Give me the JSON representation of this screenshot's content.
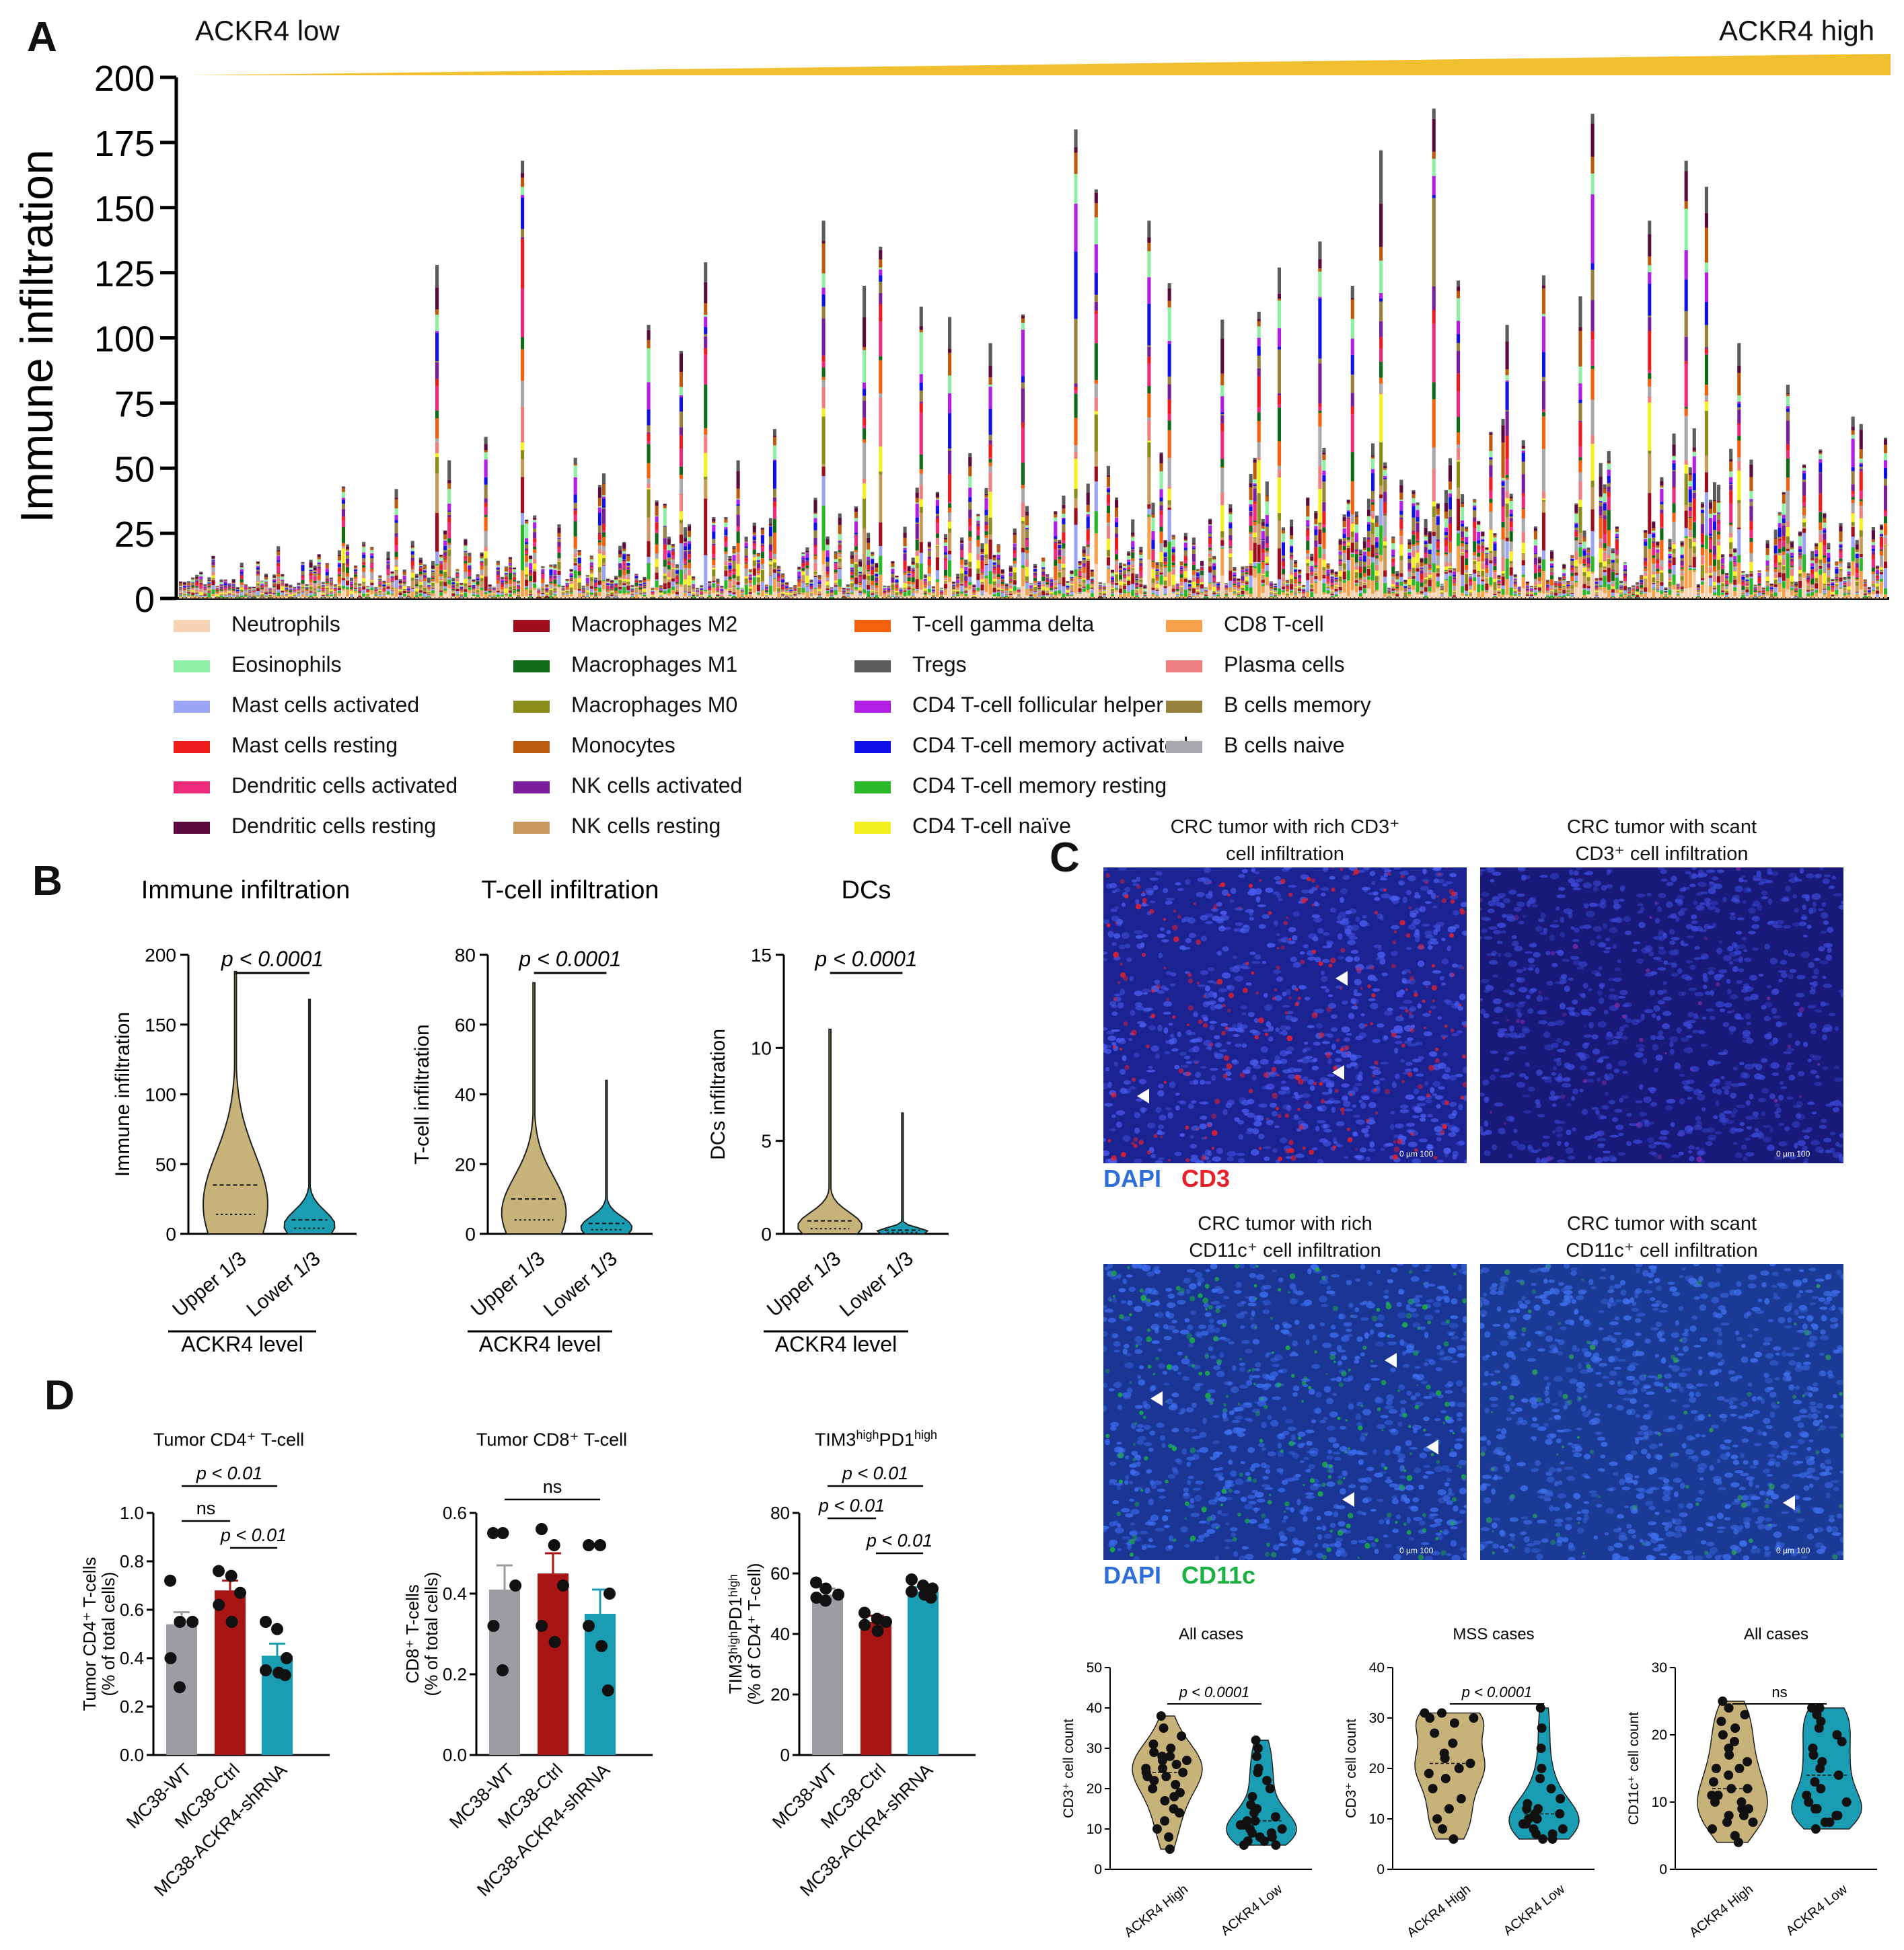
{
  "panel_labels": {
    "a": "A",
    "b": "B",
    "c": "C",
    "d": "D"
  },
  "colors": {
    "gradient": "#f0c030",
    "tan": "#c7b27a",
    "teal": "#1a9db3",
    "grey": "#9c9ca3",
    "red": "#a81515",
    "dapi": "#2d6fd6",
    "cd3": "#e8202a",
    "cd11c": "#1bb043"
  },
  "panel_a": {
    "left_label": "ACKR4 low",
    "right_label": "ACKR4 high",
    "legend": [
      {
        "label": "Neutrophils",
        "color": "#f7d3b4"
      },
      {
        "label": "Eosinophils",
        "color": "#8df0a4"
      },
      {
        "label": "Mast cells activated",
        "color": "#9aa5f5"
      },
      {
        "label": "Mast cells resting",
        "color": "#ee1c1c"
      },
      {
        "label": "Dendritic cells activated",
        "color": "#ee2a7b"
      },
      {
        "label": "Dendritic cells resting",
        "color": "#5b0a3d"
      },
      {
        "label": "Macrophages M2",
        "color": "#a00d1b"
      },
      {
        "label": "Macrophages M1",
        "color": "#0f6b18"
      },
      {
        "label": "Macrophages M0",
        "color": "#8b8d1a"
      },
      {
        "label": "Monocytes",
        "color": "#bd5a0e"
      },
      {
        "label": "NK cells activated",
        "color": "#7a1d9c"
      },
      {
        "label": "NK cells resting",
        "color": "#c89a5e"
      },
      {
        "label": "T-cell gamma delta",
        "color": "#f5610d"
      },
      {
        "label": "Tregs",
        "color": "#5c5c5c"
      },
      {
        "label": "CD4 T-cell follicular helper",
        "color": "#b21ee6"
      },
      {
        "label": "CD4 T-cell memory activated",
        "color": "#1010e8"
      },
      {
        "label": "CD4 T-cell memory resting",
        "color": "#28b828"
      },
      {
        "label": "CD4 T-cell naïve",
        "color": "#f5f020"
      },
      {
        "label": "CD8 T-cell",
        "color": "#f7a24a"
      },
      {
        "label": "Plasma cells",
        "color": "#f08080"
      },
      {
        "label": "B cells memory",
        "color": "#97813f"
      },
      {
        "label": "B cells naive",
        "color": "#a9a9ad"
      }
    ]
  },
  "panel_c": {
    "titles": {
      "cd3_rich_1": "CRC tumor with rich CD3⁺",
      "cd3_rich_2": "cell infiltration",
      "cd3_scant_1": "CRC tumor with scant",
      "cd3_scant_2": "CD3⁺ cell infiltration",
      "cd11c_rich_1": "CRC tumor with rich",
      "cd11c_rich_2": "CD11c⁺ cell infiltration",
      "cd11c_scant_1": "CRC tumor with scant",
      "cd11c_scant_2": "CD11c⁺ cell infiltration"
    },
    "stain_labels": {
      "dapi": "DAPI",
      "cd3": "CD3",
      "cd11c": "CD11c"
    },
    "scale_text": "0 µm 100"
  },
  "chart_data": [
    {
      "id": "A",
      "type": "bar",
      "stacked": true,
      "description_series": "22 CIBERSORT immune cell types, per-sample stacked bars ordered by ACKR4 level",
      "ylabel": "Immune infiltration",
      "ylim": [
        0,
        200
      ],
      "yticks": [
        0,
        25,
        50,
        75,
        100,
        125,
        150,
        175,
        200
      ],
      "n_samples": 420,
      "notable_peaks": [
        43,
        42,
        128,
        53,
        62,
        168,
        54,
        48,
        105,
        95,
        129,
        53,
        65,
        145,
        120,
        135,
        112,
        108,
        98,
        109,
        180,
        157,
        145,
        121,
        107,
        110,
        127,
        137,
        120,
        172,
        188,
        122,
        105,
        124,
        116,
        186,
        145,
        168,
        158,
        98,
        82
      ]
    },
    {
      "id": "B1",
      "type": "violin",
      "title": "Immune infiltration",
      "ylabel": "Immune infiltration",
      "categories": [
        "Upper 1/3",
        "Lower 1/3"
      ],
      "ylim": [
        0,
        200
      ],
      "yticks": [
        0,
        50,
        100,
        150,
        200
      ],
      "medians": [
        35,
        10
      ],
      "max": [
        188,
        168
      ],
      "p_text": "p < 0.0001",
      "group_label": "ACKR4 level"
    },
    {
      "id": "B2",
      "type": "violin",
      "title": "T-cell infiltration",
      "ylabel": "T-cell infiltration",
      "categories": [
        "Upper 1/3",
        "Lower 1/3"
      ],
      "ylim": [
        0,
        80
      ],
      "yticks": [
        0,
        20,
        40,
        60,
        80
      ],
      "medians": [
        10,
        3
      ],
      "max": [
        72,
        44
      ],
      "p_text": "p < 0.0001",
      "group_label": "ACKR4 level"
    },
    {
      "id": "B3",
      "type": "violin",
      "title": "DCs",
      "ylabel": "DCs infiltration",
      "categories": [
        "Upper 1/3",
        "Lower 1/3"
      ],
      "ylim": [
        0,
        15
      ],
      "yticks": [
        0,
        5,
        10,
        15
      ],
      "medians": [
        0.7,
        0.2
      ],
      "max": [
        11,
        6.5
      ],
      "p_text": "p < 0.0001",
      "group_label": "ACKR4 level"
    },
    {
      "id": "C1",
      "type": "violin",
      "title": "All cases",
      "ylabel": "CD3⁺ cell count",
      "categories": [
        "ACKR4 High",
        "ACKR4 Low"
      ],
      "ylim": [
        0,
        50
      ],
      "yticks": [
        0,
        10,
        20,
        30,
        40,
        50
      ],
      "points": [
        [
          38,
          35,
          33,
          31,
          30,
          29,
          28,
          28,
          27,
          27,
          26,
          25,
          25,
          24,
          24,
          23,
          23,
          22,
          21,
          20,
          19,
          18,
          17,
          15,
          14,
          12,
          10,
          8,
          5
        ],
        [
          32,
          30,
          28,
          25,
          24,
          22,
          20,
          18,
          16,
          15,
          14,
          13,
          12,
          12,
          11,
          11,
          10,
          10,
          9,
          9,
          8,
          8,
          7,
          7,
          6,
          6
        ]
      ],
      "p_text": "p < 0.0001"
    },
    {
      "id": "C2",
      "type": "violin",
      "title": "MSS cases",
      "ylabel": "CD3⁺ cell count",
      "categories": [
        "ACKR4 High",
        "ACKR4 Low"
      ],
      "ylim": [
        0,
        40
      ],
      "yticks": [
        0,
        10,
        20,
        30,
        40
      ],
      "points": [
        [
          31,
          31,
          30,
          30,
          29,
          27,
          25,
          23,
          22,
          21,
          20,
          19,
          18,
          16,
          14,
          12,
          10,
          8,
          6
        ],
        [
          32,
          28,
          24,
          20,
          18,
          16,
          14,
          13,
          12,
          12,
          11,
          11,
          10,
          10,
          9,
          9,
          8,
          8,
          7,
          7,
          6,
          6
        ]
      ],
      "p_text": "p < 0.0001"
    },
    {
      "id": "C3",
      "type": "violin",
      "title": "All cases",
      "ylabel": "CD11c⁺ cell count",
      "categories": [
        "ACKR4 High",
        "ACKR4 Low"
      ],
      "ylim": [
        0,
        30
      ],
      "yticks": [
        0,
        10,
        20,
        30
      ],
      "points": [
        [
          25,
          24,
          23,
          22,
          21,
          20,
          19,
          18,
          17,
          16,
          15,
          15,
          14,
          13,
          12,
          12,
          11,
          11,
          10,
          10,
          9,
          9,
          8,
          8,
          7,
          7,
          6,
          5,
          4
        ],
        [
          24,
          24,
          23,
          22,
          21,
          20,
          19,
          18,
          17,
          16,
          15,
          14,
          13,
          12,
          11,
          10,
          10,
          9,
          9,
          8,
          8,
          7,
          7,
          6
        ]
      ],
      "p_text": "ns"
    },
    {
      "id": "D1",
      "type": "bar",
      "title": "Tumor CD4⁺ T-cell",
      "ylabel_1": "Tumor CD4⁺ T-cells",
      "ylabel_2": "(% of total cells)",
      "categories": [
        "MC38-WT",
        "MC38-Ctrl",
        "MC38-ACKR4-shRNA"
      ],
      "values": [
        0.54,
        0.68,
        0.41
      ],
      "errors": [
        0.05,
        0.04,
        0.05
      ],
      "points": [
        [
          0.72,
          0.55,
          0.55,
          0.4,
          0.28
        ],
        [
          0.76,
          0.74,
          0.67,
          0.62,
          0.55
        ],
        [
          0.55,
          0.52,
          0.4,
          0.35,
          0.34,
          0.33
        ]
      ],
      "ylim": [
        0,
        1.0
      ],
      "yticks": [
        0.0,
        0.2,
        0.4,
        0.6,
        0.8,
        1.0
      ],
      "comparisons": [
        {
          "pair": [
            0,
            2
          ],
          "text": "p < 0.01"
        },
        {
          "pair": [
            0,
            1
          ],
          "text": "ns"
        },
        {
          "pair": [
            1,
            2
          ],
          "text": "p < 0.01"
        }
      ]
    },
    {
      "id": "D2",
      "type": "bar",
      "title": "Tumor CD8⁺ T-cell",
      "ylabel_1": "CD8⁺ T-cells",
      "ylabel_2": "(% of total cells)",
      "categories": [
        "MC38-WT",
        "MC38-Ctrl",
        "MC38-ACKR4-shRNA"
      ],
      "values": [
        0.41,
        0.45,
        0.35
      ],
      "errors": [
        0.06,
        0.05,
        0.06
      ],
      "points": [
        [
          0.55,
          0.55,
          0.42,
          0.32,
          0.21
        ],
        [
          0.56,
          0.52,
          0.42,
          0.32,
          0.28
        ],
        [
          0.52,
          0.52,
          0.4,
          0.32,
          0.27,
          0.16
        ]
      ],
      "ylim": [
        0,
        0.6
      ],
      "yticks": [
        0.0,
        0.2,
        0.4,
        0.6
      ],
      "comparisons": [
        {
          "pair": [
            0,
            2
          ],
          "text": "ns"
        }
      ]
    },
    {
      "id": "D3",
      "type": "bar",
      "title_main": "TIM3",
      "title_sup1": "high",
      "title_mid": "PD1",
      "title_sup2": "high",
      "ylabel_1": "TIM3ʰⁱᵍʰPD1ʰⁱᵍʰ",
      "ylabel_2": "(% of CD4⁺ T-cell)",
      "categories": [
        "MC38-WT",
        "MC38-Ctrl",
        "MC38-ACKR4-shRNA"
      ],
      "values": [
        53,
        44,
        54
      ],
      "errors": [
        2,
        2,
        1.5
      ],
      "points": [
        [
          57,
          55,
          53,
          52,
          51
        ],
        [
          47,
          45,
          44,
          43,
          41
        ],
        [
          58,
          56,
          55,
          54,
          53,
          52
        ]
      ],
      "ylim": [
        0,
        80
      ],
      "yticks": [
        0,
        20,
        40,
        60,
        80
      ],
      "comparisons": [
        {
          "pair": [
            0,
            2
          ],
          "text": "p < 0.01"
        },
        {
          "pair": [
            0,
            1
          ],
          "text": "p < 0.01"
        },
        {
          "pair": [
            1,
            2
          ],
          "text": "p < 0.01"
        }
      ]
    }
  ]
}
